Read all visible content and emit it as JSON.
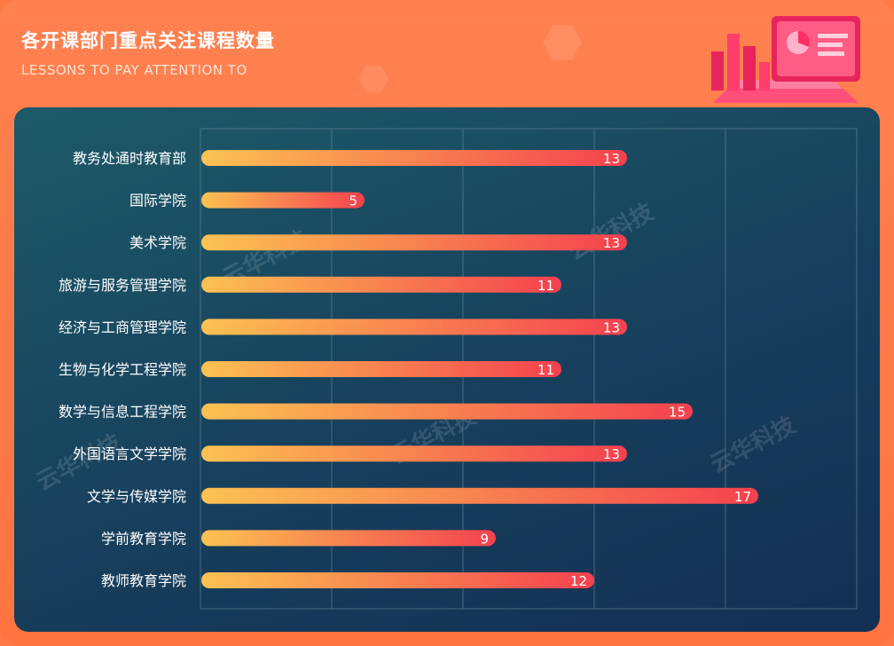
{
  "header": {
    "title": "各开课部门重点关注课程数量",
    "subtitle": "LESSONS TO PAY ATTENTION TO"
  },
  "watermark_text": "云华科技",
  "colors": {
    "bar_start": "#fbc252",
    "bar_end": "#f4414f",
    "panel_bg": "#173f5c",
    "frame_bg": "#ff7a45",
    "grid": "#6b8a9a"
  },
  "chart_data": {
    "type": "bar",
    "orientation": "horizontal",
    "title": "各开课部门重点关注课程数量",
    "subtitle": "LESSONS TO PAY ATTENTION TO",
    "xlabel": "",
    "ylabel": "",
    "xlim": [
      0,
      20
    ],
    "grid": true,
    "legend": "none",
    "categories": [
      "教务处通时教育部",
      "国际学院",
      "美术学院",
      "旅游与服务管理学院",
      "经济与工商管理学院",
      "生物与化学工程学院",
      "数学与信息工程学院",
      "外国语言文学学院",
      "文学与传媒学院",
      "学前教育学院",
      "教师教育学院"
    ],
    "values": [
      13,
      5,
      13,
      11,
      13,
      11,
      15,
      13,
      17,
      9,
      12
    ]
  }
}
